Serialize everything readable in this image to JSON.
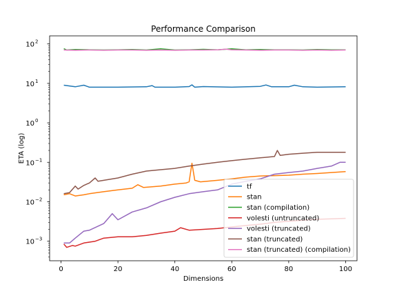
{
  "chart_data": {
    "type": "line",
    "title": "Performance Comparison",
    "xlabel": "Dimensions",
    "ylabel": "ETA (log)",
    "xlim": [
      -4,
      104
    ],
    "ylim": [
      0.00032,
      160
    ],
    "yscale": "log",
    "grid": false,
    "legend_position": "lower-right",
    "x_ticks": [
      0,
      20,
      40,
      60,
      80,
      100
    ],
    "x_tick_labels": [
      "0",
      "20",
      "40",
      "60",
      "80",
      "100"
    ],
    "y_ticks": [
      0.001,
      0.01,
      0.1,
      1,
      10,
      100
    ],
    "y_tick_labels": [
      {
        "base": "10",
        "exp": "−3"
      },
      {
        "base": "10",
        "exp": "−2"
      },
      {
        "base": "10",
        "exp": "−1"
      },
      {
        "base": "10",
        "exp": "0"
      },
      {
        "base": "10",
        "exp": "1"
      },
      {
        "base": "10",
        "exp": "2"
      }
    ],
    "series": [
      {
        "name": "tf",
        "color": "#1f77b4",
        "points": [
          [
            1,
            9.0
          ],
          [
            5,
            8.2
          ],
          [
            8,
            9.0
          ],
          [
            10,
            8.0
          ],
          [
            20,
            8.0
          ],
          [
            30,
            8.2
          ],
          [
            32,
            8.8
          ],
          [
            33,
            8.0
          ],
          [
            40,
            8.0
          ],
          [
            45,
            8.3
          ],
          [
            46,
            9.2
          ],
          [
            47,
            8.0
          ],
          [
            50,
            8.3
          ],
          [
            60,
            8.0
          ],
          [
            70,
            8.4
          ],
          [
            72,
            9.1
          ],
          [
            74,
            8.2
          ],
          [
            80,
            8.2
          ],
          [
            82,
            9.0
          ],
          [
            85,
            8.2
          ],
          [
            90,
            8.0
          ],
          [
            100,
            8.2
          ]
        ]
      },
      {
        "name": "stan",
        "color": "#ff7f0e",
        "points": [
          [
            1,
            0.015
          ],
          [
            3,
            0.016
          ],
          [
            5,
            0.014
          ],
          [
            8,
            0.015
          ],
          [
            10,
            0.016
          ],
          [
            15,
            0.018
          ],
          [
            20,
            0.02
          ],
          [
            25,
            0.022
          ],
          [
            27,
            0.027
          ],
          [
            29,
            0.023
          ],
          [
            35,
            0.025
          ],
          [
            40,
            0.028
          ],
          [
            44,
            0.03
          ],
          [
            45,
            0.032
          ],
          [
            46,
            0.095
          ],
          [
            47,
            0.035
          ],
          [
            49,
            0.032
          ],
          [
            55,
            0.035
          ],
          [
            60,
            0.038
          ],
          [
            65,
            0.042
          ],
          [
            70,
            0.045
          ],
          [
            75,
            0.046
          ],
          [
            80,
            0.047
          ],
          [
            85,
            0.05
          ],
          [
            90,
            0.052
          ],
          [
            95,
            0.055
          ],
          [
            100,
            0.058
          ]
        ]
      },
      {
        "name": "stan (compilation)",
        "color": "#2ca02c",
        "points": [
          [
            1,
            76
          ],
          [
            2,
            70
          ],
          [
            5,
            72
          ],
          [
            10,
            71
          ],
          [
            15,
            70
          ],
          [
            20,
            71
          ],
          [
            25,
            72
          ],
          [
            30,
            70
          ],
          [
            35,
            75
          ],
          [
            40,
            70
          ],
          [
            45,
            71
          ],
          [
            50,
            73
          ],
          [
            55,
            71
          ],
          [
            60,
            75
          ],
          [
            65,
            71
          ],
          [
            70,
            72
          ],
          [
            75,
            71
          ],
          [
            80,
            71
          ],
          [
            85,
            70
          ],
          [
            90,
            72
          ],
          [
            95,
            71
          ],
          [
            100,
            71
          ]
        ]
      },
      {
        "name": "volesti (untruncated)",
        "color": "#d62728",
        "points": [
          [
            1,
            0.00085
          ],
          [
            2,
            0.0007
          ],
          [
            4,
            0.00078
          ],
          [
            5,
            0.00075
          ],
          [
            8,
            0.0009
          ],
          [
            10,
            0.00095
          ],
          [
            12,
            0.001
          ],
          [
            15,
            0.0012
          ],
          [
            20,
            0.0013
          ],
          [
            25,
            0.0013
          ],
          [
            30,
            0.0014
          ],
          [
            35,
            0.0016
          ],
          [
            40,
            0.0018
          ],
          [
            42,
            0.0022
          ],
          [
            45,
            0.0019
          ],
          [
            50,
            0.002
          ],
          [
            55,
            0.0021
          ],
          [
            60,
            0.0023
          ],
          [
            65,
            0.0025
          ],
          [
            70,
            0.0027
          ],
          [
            75,
            0.003
          ],
          [
            80,
            0.0032
          ],
          [
            85,
            0.0034
          ],
          [
            90,
            0.0036
          ],
          [
            95,
            0.0037
          ],
          [
            100,
            0.0038
          ]
        ]
      },
      {
        "name": "volesti (truncated)",
        "color": "#9467bd",
        "points": [
          [
            1,
            0.0009
          ],
          [
            3,
            0.0009
          ],
          [
            5,
            0.0012
          ],
          [
            8,
            0.0018
          ],
          [
            10,
            0.0019
          ],
          [
            15,
            0.0028
          ],
          [
            18,
            0.005
          ],
          [
            20,
            0.0035
          ],
          [
            25,
            0.0055
          ],
          [
            30,
            0.007
          ],
          [
            35,
            0.01
          ],
          [
            40,
            0.013
          ],
          [
            45,
            0.016
          ],
          [
            50,
            0.018
          ],
          [
            55,
            0.02
          ],
          [
            60,
            0.028
          ],
          [
            65,
            0.033
          ],
          [
            70,
            0.038
          ],
          [
            75,
            0.05
          ],
          [
            80,
            0.055
          ],
          [
            85,
            0.06
          ],
          [
            90,
            0.07
          ],
          [
            95,
            0.08
          ],
          [
            98,
            0.1
          ],
          [
            100,
            0.1
          ]
        ]
      },
      {
        "name": "stan (truncated)",
        "color": "#8c564b",
        "points": [
          [
            1,
            0.016
          ],
          [
            3,
            0.017
          ],
          [
            5,
            0.025
          ],
          [
            6,
            0.021
          ],
          [
            8,
            0.026
          ],
          [
            10,
            0.03
          ],
          [
            12,
            0.04
          ],
          [
            13,
            0.033
          ],
          [
            15,
            0.035
          ],
          [
            20,
            0.04
          ],
          [
            25,
            0.05
          ],
          [
            30,
            0.06
          ],
          [
            35,
            0.065
          ],
          [
            40,
            0.07
          ],
          [
            45,
            0.08
          ],
          [
            50,
            0.09
          ],
          [
            55,
            0.1
          ],
          [
            60,
            0.11
          ],
          [
            65,
            0.12
          ],
          [
            70,
            0.13
          ],
          [
            75,
            0.14
          ],
          [
            76,
            0.2
          ],
          [
            77,
            0.15
          ],
          [
            80,
            0.16
          ],
          [
            85,
            0.17
          ],
          [
            90,
            0.18
          ],
          [
            95,
            0.18
          ],
          [
            100,
            0.18
          ]
        ]
      },
      {
        "name": "stan (truncated) (compilation)",
        "color": "#e377c2",
        "points": [
          [
            1,
            70
          ],
          [
            5,
            69
          ],
          [
            10,
            70
          ],
          [
            15,
            69
          ],
          [
            20,
            70
          ],
          [
            25,
            70
          ],
          [
            30,
            69
          ],
          [
            35,
            70
          ],
          [
            40,
            69
          ],
          [
            45,
            70
          ],
          [
            50,
            70
          ],
          [
            55,
            71
          ],
          [
            58,
            74
          ],
          [
            60,
            71
          ],
          [
            65,
            70
          ],
          [
            70,
            69
          ],
          [
            75,
            70
          ],
          [
            80,
            70
          ],
          [
            85,
            69
          ],
          [
            90,
            70
          ],
          [
            95,
            69
          ],
          [
            100,
            70
          ]
        ]
      }
    ]
  }
}
